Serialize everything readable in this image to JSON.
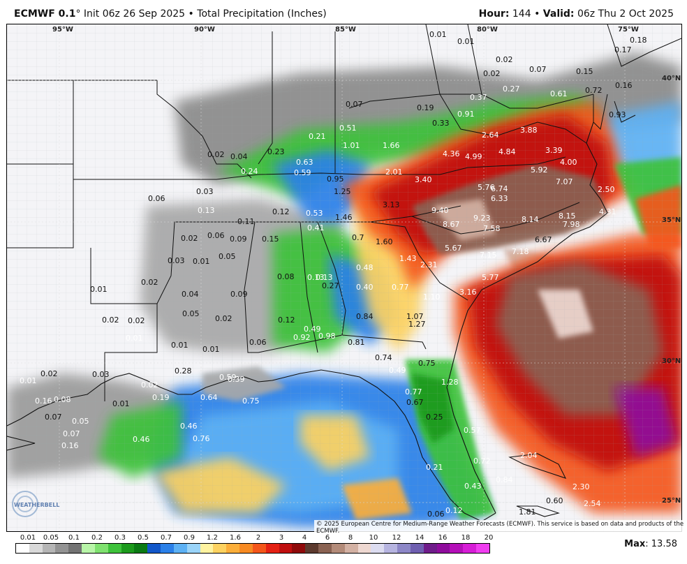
{
  "header": {
    "model": "ECMWF 0.1",
    "degree": "°",
    "init": "Init 06z 26 Sep 2025",
    "sep": "•",
    "product": "Total Precipitation (Inches)",
    "hour_label": "Hour:",
    "hour_value": "144",
    "valid_label": "Valid:",
    "valid_value": "06z Thu 2 Oct 2025"
  },
  "gridlines": {
    "lon": [
      "95°W",
      "90°W",
      "85°W",
      "80°W",
      "75°W"
    ],
    "lat": [
      "40°N",
      "35°N",
      "30°N",
      "25°N"
    ]
  },
  "values": [
    "0.01",
    "0.01",
    "0.02",
    "0.07",
    "0.15",
    "0.17",
    "0.02",
    "0.18",
    "0.16",
    "0.93",
    "0.27",
    "0.37",
    "0.61",
    "0.72",
    "0.07",
    "0.19",
    "0.33",
    "0.91",
    "2.64",
    "3.88",
    "4.36",
    "4.99",
    "4.84",
    "3.39",
    "4.00",
    "0.51",
    "1.01",
    "1.66",
    "0.21",
    "0.23",
    "0.02",
    "0.04",
    "0.63",
    "0.24",
    "0.59",
    "0.95",
    "2.01",
    "3.40",
    "5.92",
    "7.07",
    "5.76",
    "6.74",
    "6.33",
    "2.50",
    "1.25",
    "0.06",
    "0.03",
    "0.13",
    "0.12",
    "0.53",
    "1.46",
    "3.13",
    "9.40",
    "9.23",
    "8.14",
    "8.15",
    "4.31",
    "7.98",
    "8.67",
    "7.58",
    "0.11",
    "0.41",
    "0.02",
    "0.06",
    "0.09",
    "0.15",
    "0.7",
    "1.60",
    "6.67",
    "5.67",
    "7.18",
    "0.03",
    "0.01",
    "0.05",
    "0.13",
    "1.43",
    "2.31",
    "7.15",
    "0.48",
    "0.08",
    "0.13",
    "0.27",
    "0.40",
    "0.77",
    "5.77",
    "0.01",
    "0.02",
    "0.04",
    "0.09",
    "3.16",
    "1.10",
    "0.05",
    "0.02",
    "0.02",
    "0.12",
    "0.84",
    "1.07",
    "1.27",
    "0.01",
    "0.49",
    "0.92",
    "0.98",
    "0.81",
    "0.06",
    "0.01",
    "0.02",
    "0.74",
    "0.75",
    "0.28",
    "0.59",
    "0.39",
    "0.49",
    "0.01",
    "0.01",
    "0.02",
    "0.03",
    "1.28",
    "0.02",
    "0.77",
    "0.64",
    "0.75",
    "0.16",
    "0.08",
    "0.19",
    "0.67",
    "0.01",
    "0.07",
    "0.05",
    "0.07",
    "0.25",
    "0.46",
    "0.76",
    "0.16",
    "0.46",
    "0.57",
    "0.72",
    "0.21",
    "2.04",
    "0.84",
    "0.43",
    "2.30",
    "2.54",
    "0.60",
    "0.12",
    "1.81",
    "0.06"
  ],
  "copyright": "© 2025 European Centre for Medium-Range Weather Forecasts (ECMWF). This service is based on data and products of the ECMWF.",
  "logo_text": "WEATHERBELL",
  "legend": {
    "ticks": [
      "0.01",
      "0.05",
      "0.1",
      "0.2",
      "0.3",
      "0.5",
      "0.7",
      "0.9",
      "1.2",
      "1.6",
      "2",
      "3",
      "4",
      "6",
      "8",
      "10",
      "12",
      "14",
      "16",
      "18",
      "20"
    ],
    "colors": [
      "#ffffff",
      "#d9d9d9",
      "#b5b5b5",
      "#939393",
      "#737373",
      "#b8f5a8",
      "#7fe16f",
      "#3ec23b",
      "#1c9a1c",
      "#0b7a14",
      "#1257c9",
      "#2b80e8",
      "#5db1f4",
      "#9ad4f9",
      "#fff3a0",
      "#fdd260",
      "#fbae3a",
      "#f78a22",
      "#f4561a",
      "#e42114",
      "#bf0f0f",
      "#8f0a0a",
      "#5c3a2e",
      "#8a6252",
      "#b38b79",
      "#d3b1a3",
      "#eed8d1",
      "#dcdcf0",
      "#b6b4e0",
      "#8d87c7",
      "#6f5fb0",
      "#6f1c8a",
      "#8f0c9c",
      "#b40fb8",
      "#d61dd6",
      "#f03df0"
    ]
  },
  "max": {
    "label": "Max",
    "value": "13.58"
  }
}
